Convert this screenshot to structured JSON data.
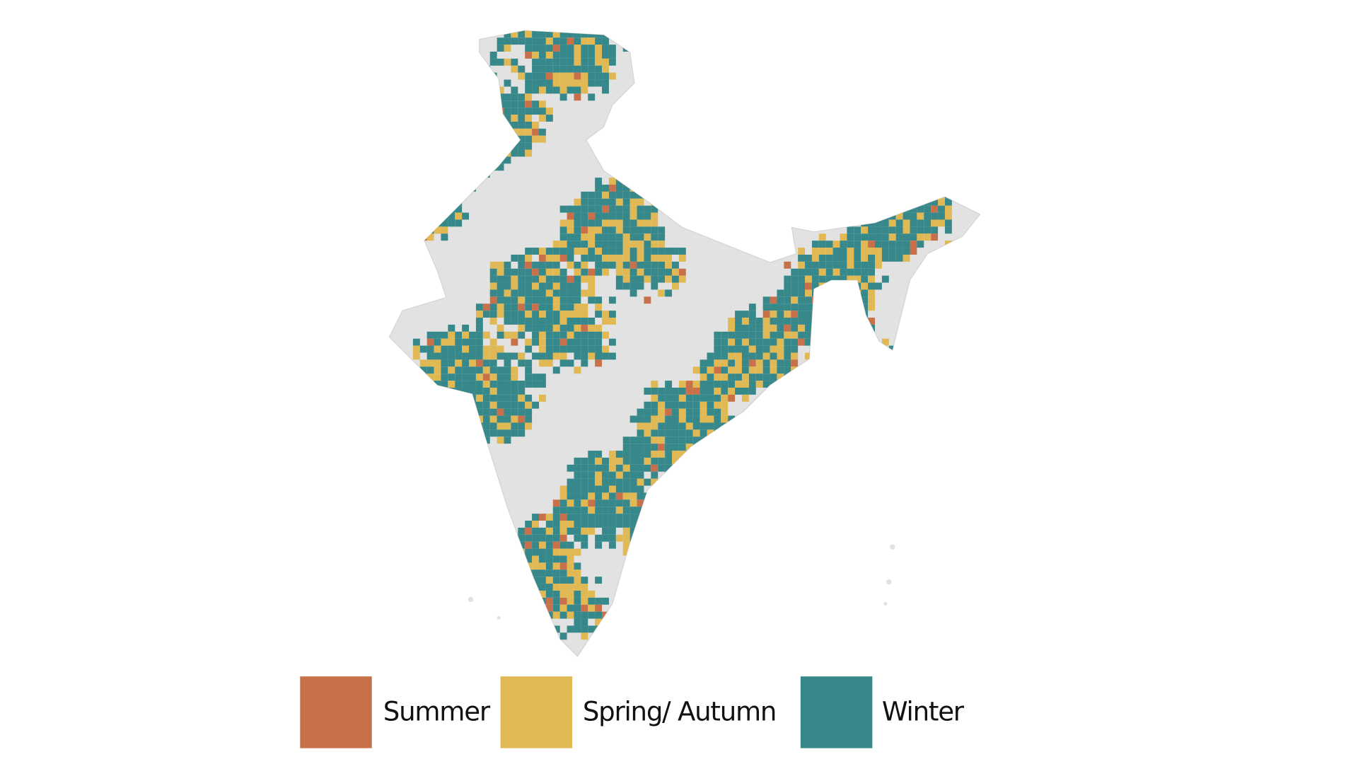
{
  "legend": {
    "items": [
      {
        "label": "Summer",
        "color": "#c8704a"
      },
      {
        "label": "Spring/ Autumn",
        "color": "#e0b954"
      },
      {
        "label": "Winter",
        "color": "#36888a"
      }
    ]
  }
}
